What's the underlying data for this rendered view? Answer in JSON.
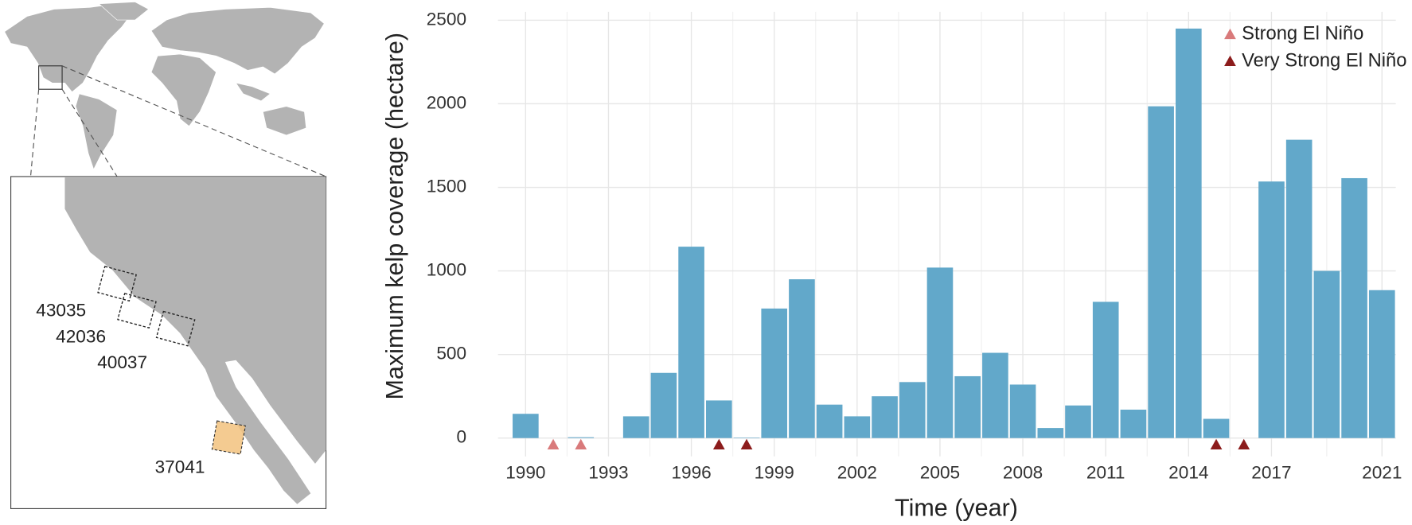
{
  "map": {
    "labels": [
      "43035",
      "42036",
      "40037",
      "37041"
    ]
  },
  "chart_data": {
    "type": "bar",
    "x_label": "Time (year)",
    "y_label": "Maximum kelp coverage (hectare)",
    "x": [
      1990,
      1991,
      1992,
      1993,
      1994,
      1995,
      1996,
      1997,
      1998,
      1999,
      2000,
      2001,
      2002,
      2003,
      2004,
      2005,
      2006,
      2007,
      2008,
      2009,
      2010,
      2011,
      2012,
      2013,
      2014,
      2015,
      2016,
      2017,
      2018,
      2019,
      2020,
      2021
    ],
    "values": [
      145,
      0,
      5,
      0,
      130,
      390,
      1145,
      225,
      3,
      775,
      950,
      200,
      130,
      250,
      335,
      1020,
      370,
      510,
      320,
      60,
      195,
      815,
      170,
      1985,
      2450,
      115,
      0,
      1535,
      1785,
      1000,
      1555,
      885
    ],
    "color": "#62a8ca",
    "xlim": [
      1989,
      2021.5
    ],
    "xticks": [
      1990,
      1993,
      1996,
      1999,
      2002,
      2005,
      2008,
      2011,
      2014,
      2017,
      2021
    ],
    "ylim": [
      -110,
      2550
    ],
    "yticks": [
      0,
      500,
      1000,
      1500,
      2000,
      2500
    ],
    "grid": true,
    "legend": "top-right",
    "events": [
      {
        "name": "Strong El Niño",
        "color": "#d97a7b",
        "x": [
          1991,
          1992
        ]
      },
      {
        "name": "Very Strong El Niño",
        "color": "#8c1c1c",
        "x": [
          1997,
          1998,
          2015,
          2016
        ]
      }
    ]
  }
}
